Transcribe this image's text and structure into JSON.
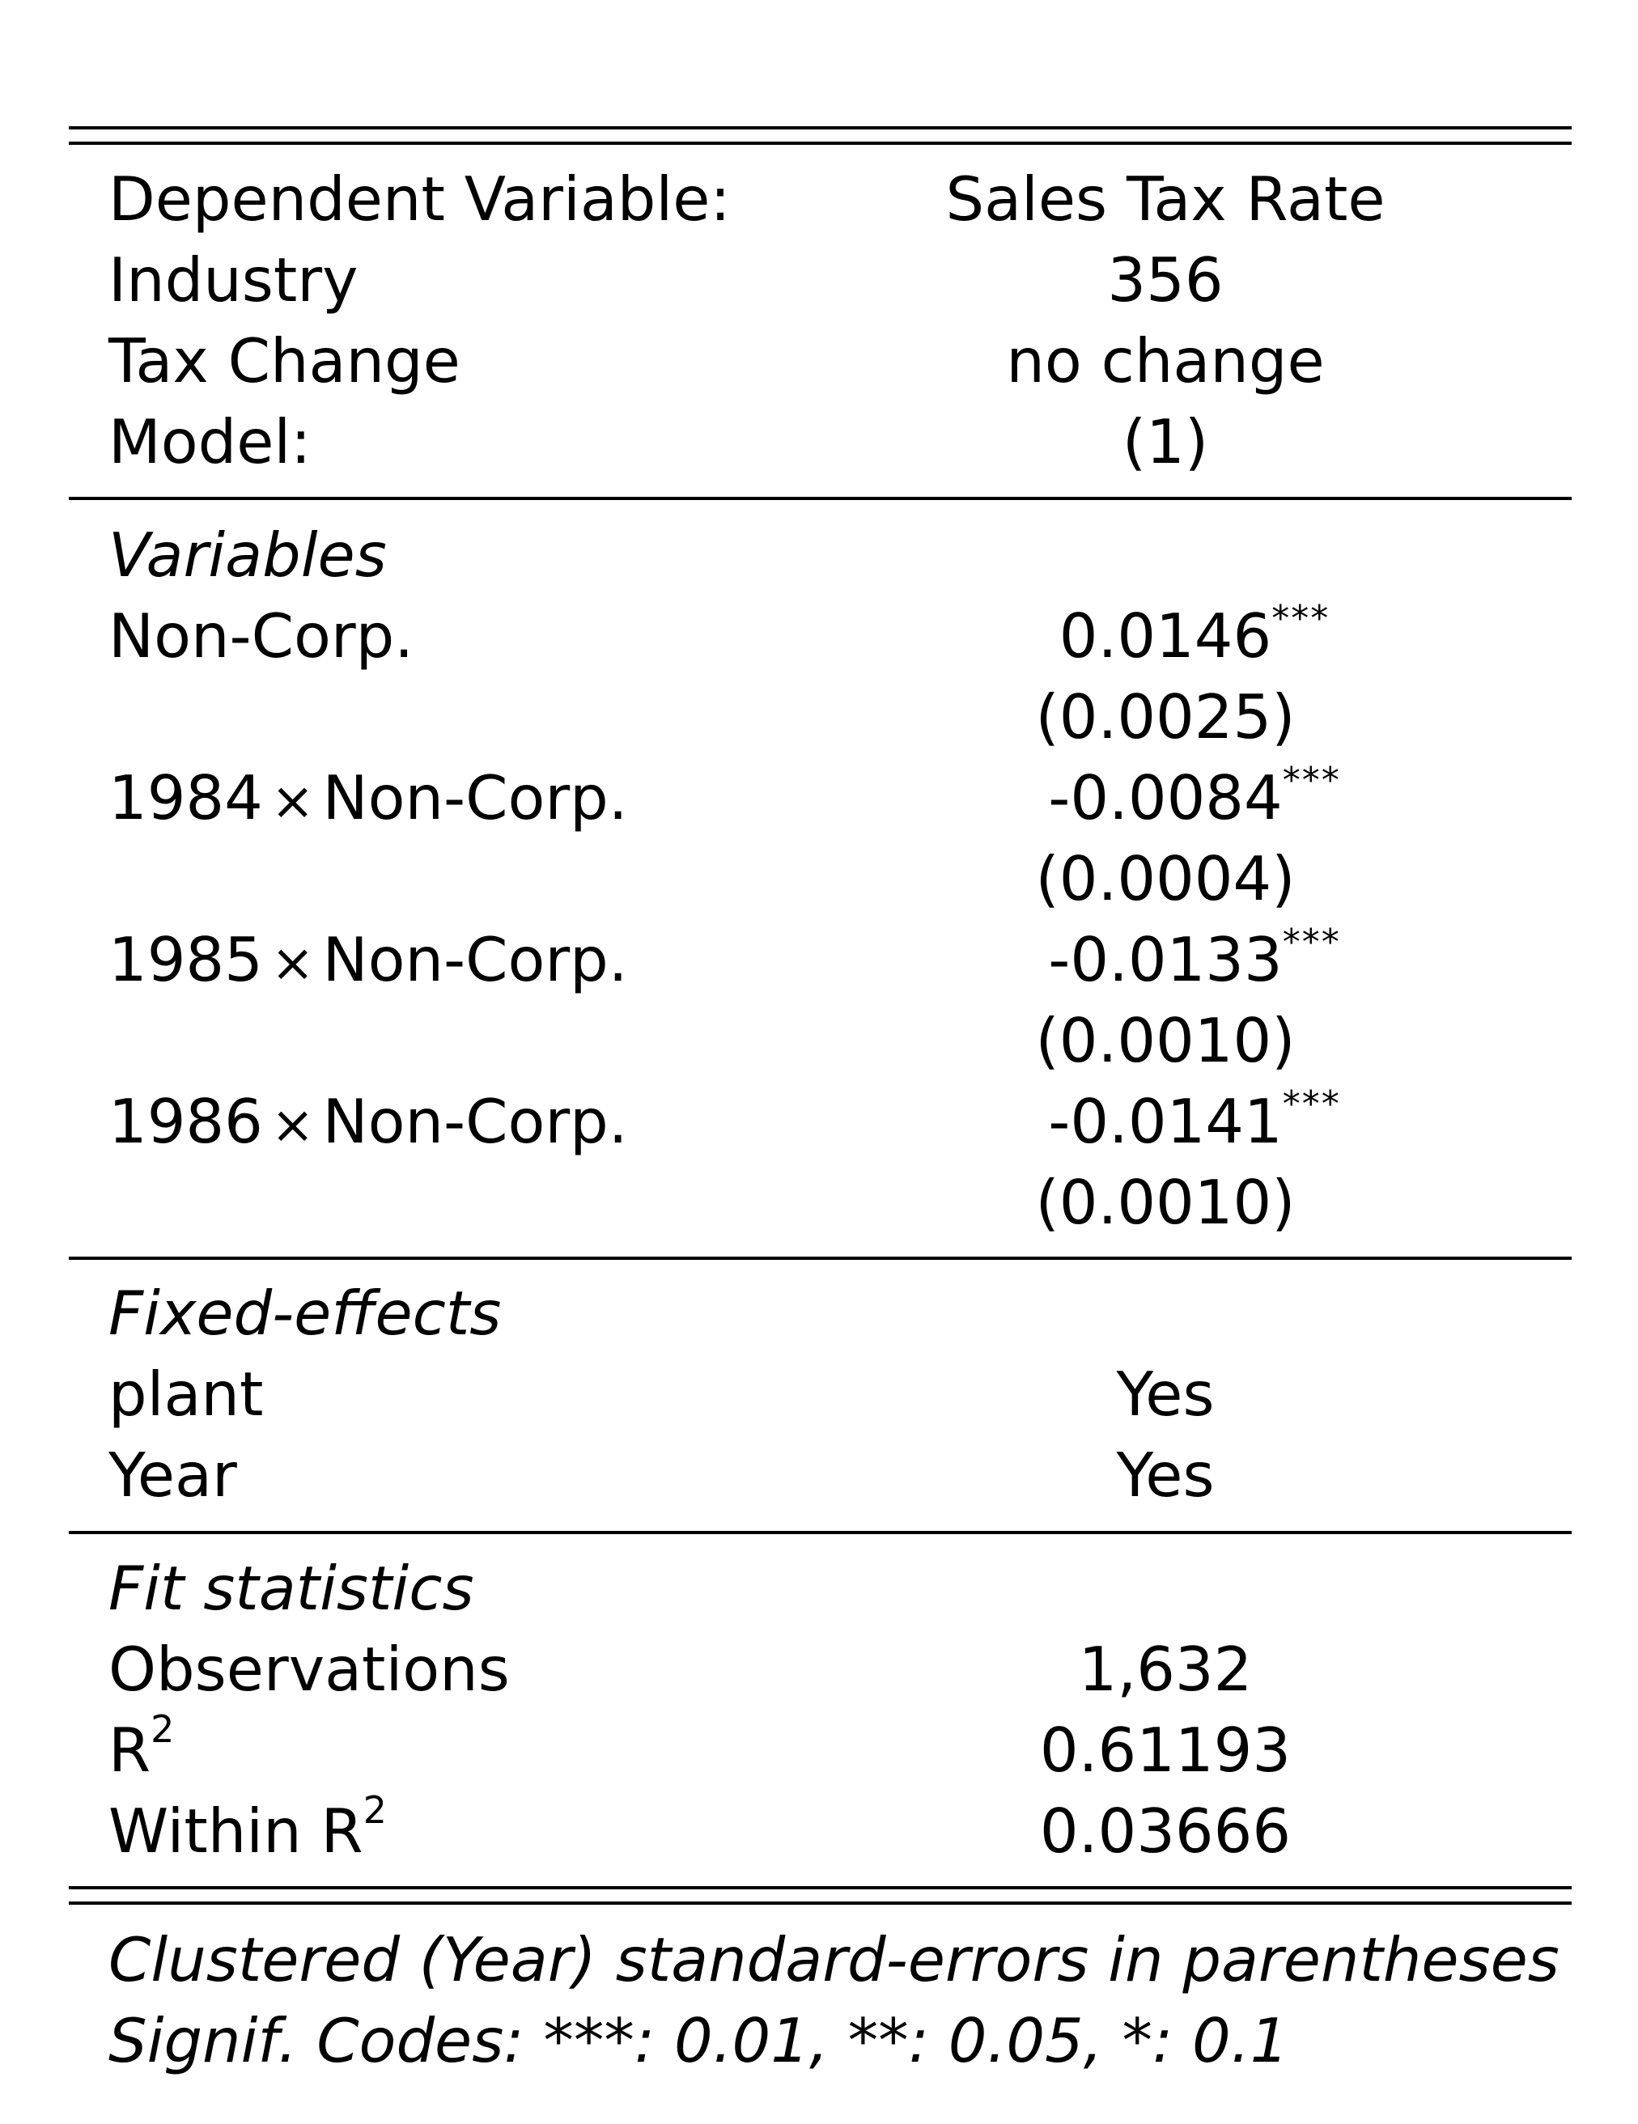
{
  "header": {
    "dependent_variable_label": "Dependent Variable:",
    "dependent_variable_value": "Sales Tax Rate",
    "industry_label": "Industry",
    "industry_value": "356",
    "tax_change_label": "Tax Change",
    "tax_change_value": "no change",
    "model_label": "Model:",
    "model_value": "(1)"
  },
  "variables": {
    "section_title": "Variables",
    "rows": [
      {
        "label_prefix": "",
        "label": "Non-Corp.",
        "coef": "0.0146",
        "stars": "***",
        "se": "(0.0025)"
      },
      {
        "label_prefix": "1984",
        "label": "Non-Corp.",
        "coef": "-0.0084",
        "stars": "***",
        "se": "(0.0004)"
      },
      {
        "label_prefix": "1985",
        "label": "Non-Corp.",
        "coef": "-0.0133",
        "stars": "***",
        "se": "(0.0010)"
      },
      {
        "label_prefix": "1986",
        "label": "Non-Corp.",
        "coef": "-0.0141",
        "stars": "***",
        "se": "(0.0010)"
      }
    ],
    "times_symbol": "×"
  },
  "fixed_effects": {
    "section_title": "Fixed-effects",
    "rows": [
      {
        "label": "plant",
        "value": "Yes"
      },
      {
        "label": "Year",
        "value": "Yes"
      }
    ]
  },
  "fit_statistics": {
    "section_title": "Fit statistics",
    "observations_label": "Observations",
    "observations_value": "1,632",
    "r2_label": "R",
    "r2_value": "0.61193",
    "within_r2_label": "Within R",
    "within_r2_value": "0.03666",
    "superscript": "2"
  },
  "notes": {
    "line1": "Clustered (Year) standard-errors in parentheses",
    "line2": "Signif. Codes: ***: 0.01, **: 0.05, *: 0.1"
  }
}
